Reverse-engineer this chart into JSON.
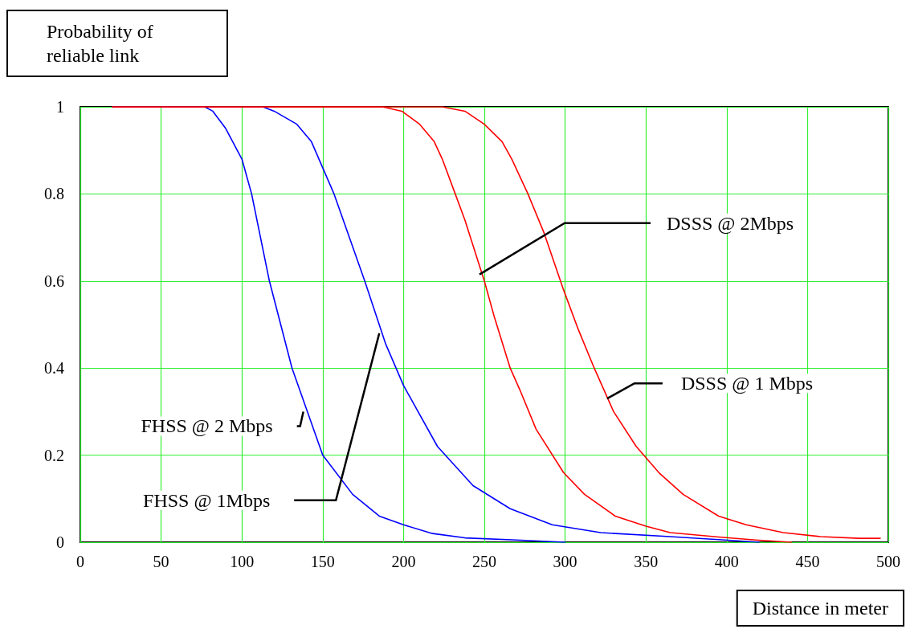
{
  "chart_data": {
    "type": "line",
    "xlabel": "Distance in meter",
    "ylabel": "Probability of reliable link",
    "xlim": [
      0,
      500
    ],
    "xticks": [
      0,
      50,
      100,
      150,
      200,
      250,
      300,
      350,
      400,
      450,
      500
    ],
    "ylim": [
      0,
      1
    ],
    "yticks": [
      0,
      0.2,
      0.4,
      0.6,
      0.8,
      1
    ],
    "grid": true,
    "marker": "none",
    "line_style": "solid",
    "series": [
      {
        "color": "#0000ff",
        "x": [
          20,
          77,
          82,
          90,
          100,
          106,
          117,
          131,
          150,
          168.5,
          185,
          200,
          218,
          238,
          270,
          300
        ],
        "values": [
          1,
          1,
          0.99,
          0.95,
          0.88,
          0.8,
          0.6,
          0.4,
          0.2,
          0.11,
          0.06,
          0.04,
          0.02,
          0.01,
          0.005,
          0
        ]
      },
      {
        "color": "#0000ff",
        "x": [
          20,
          113,
          120,
          134,
          143,
          150,
          157,
          176,
          189,
          200,
          221,
          243,
          266,
          292,
          322,
          365,
          399,
          420
        ],
        "values": [
          1,
          1,
          0.99,
          0.96,
          0.92,
          0.86,
          0.8,
          0.6,
          0.455,
          0.36,
          0.22,
          0.13,
          0.077,
          0.04,
          0.022,
          0.013,
          0.005,
          0
        ]
      },
      {
        "color": "#ff0000",
        "x": [
          20,
          187,
          199,
          210,
          219,
          224,
          232,
          238,
          250,
          256,
          266,
          272,
          282,
          299,
          312,
          331,
          350,
          365,
          395,
          418,
          440
        ],
        "values": [
          1,
          1,
          0.99,
          0.96,
          0.92,
          0.88,
          0.8,
          0.74,
          0.6,
          0.52,
          0.4,
          0.35,
          0.26,
          0.16,
          0.11,
          0.06,
          0.037,
          0.022,
          0.012,
          0.005,
          0
        ]
      },
      {
        "color": "#ff0000",
        "x": [
          20,
          224,
          238,
          250,
          261,
          267,
          277,
          287,
          299,
          308,
          318,
          330,
          344,
          358,
          373,
          395,
          412,
          435,
          458,
          482,
          495
        ],
        "values": [
          1,
          1,
          0.99,
          0.96,
          0.92,
          0.88,
          0.8,
          0.71,
          0.58,
          0.49,
          0.4,
          0.3,
          0.22,
          0.16,
          0.11,
          0.06,
          0.04,
          0.022,
          0.013,
          0.009,
          0.009
        ]
      }
    ],
    "annotations": [
      {
        "text": "DSSS @ 2Mbps",
        "x": 247,
        "y": 0.615
      },
      {
        "text": "DSSS @ 1 Mbps",
        "x": 326,
        "y": 0.33
      },
      {
        "text": "FHSS @ 2 Mbps",
        "x": 138,
        "y": 0.3
      },
      {
        "text": "FHSS @ 1Mbps",
        "x": 185,
        "y": 0.48
      }
    ]
  }
}
